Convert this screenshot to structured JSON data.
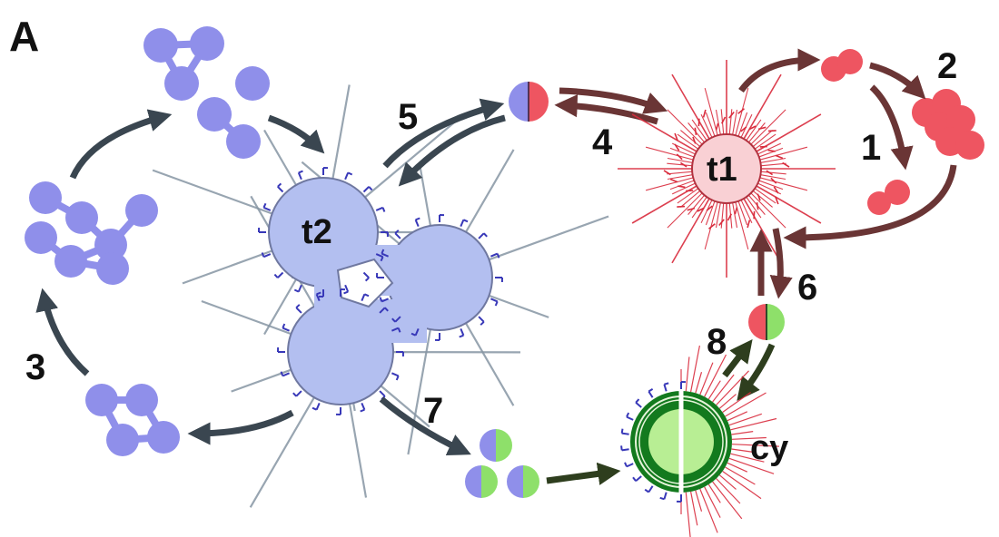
{
  "figure": {
    "panel_label": "A",
    "nodes": {
      "t1": "t1",
      "t2": "t2",
      "cy": "cy"
    },
    "steps": {
      "s1": "1",
      "s2": "2",
      "s3": "3",
      "s4": "4",
      "s5": "5",
      "s6": "6",
      "s7": "7",
      "s8": "8"
    },
    "colors": {
      "blue_fill": "#8f8fea",
      "blue_dark": "#3838b8",
      "blue_cell": "#b3bff0",
      "red_fill": "#ee5561",
      "red_spike": "#d92b3c",
      "t1_core": "#f9d0d4",
      "green_fill": "#8ee06a",
      "green_dark": "#137a1e",
      "arrow_red": "#6a3535",
      "arrow_dark": "#3a4650",
      "arrow_green": "#2e3e1e"
    }
  }
}
